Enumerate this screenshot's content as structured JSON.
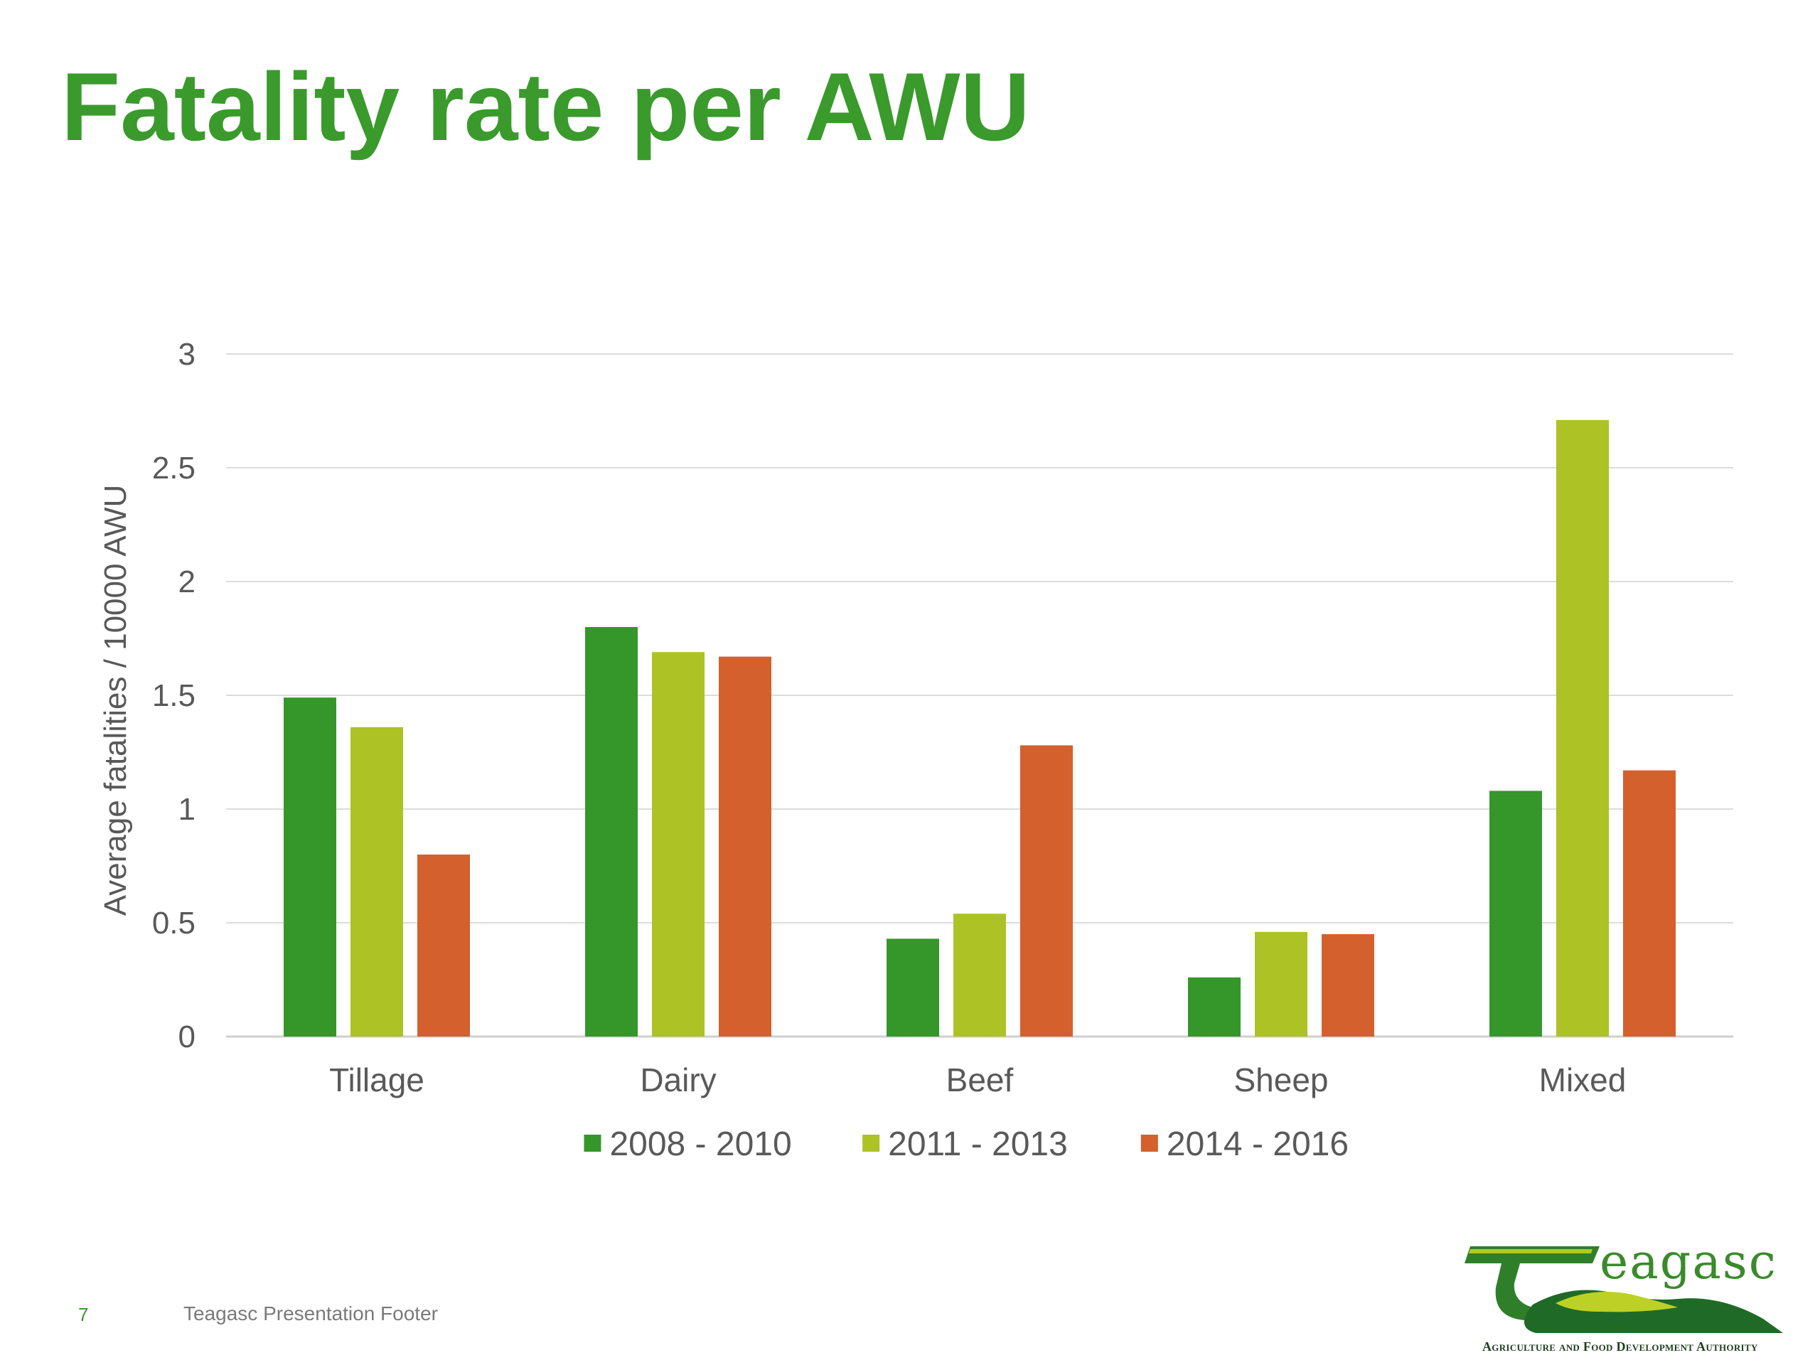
{
  "slide": {
    "title": "Fatality rate per AWU",
    "page_number": "7",
    "footer": "Teagasc Presentation Footer"
  },
  "logo": {
    "wordmark": "eagasc",
    "tagline": "Agriculture and Food Development Authority",
    "colors": {
      "green": "#3a8a2c",
      "lime": "#b4c81e",
      "dark": "#1f5a24"
    }
  },
  "chart_data": {
    "type": "bar",
    "title": "",
    "xlabel": "",
    "ylabel": "Average fatalities / 10000 AWU",
    "ylim": [
      0,
      3
    ],
    "yticks": [
      0,
      0.5,
      1,
      1.5,
      2,
      2.5,
      3
    ],
    "ytick_labels": [
      "0",
      "0.5",
      "1",
      "1.5",
      "2",
      "2.5",
      "3"
    ],
    "grid": true,
    "legend_position": "bottom",
    "categories": [
      "Tillage",
      "Dairy",
      "Beef",
      "Sheep",
      "Mixed"
    ],
    "series": [
      {
        "name": "2008 - 2010",
        "color": "#35962a",
        "values": [
          1.49,
          1.8,
          0.43,
          0.26,
          1.08
        ]
      },
      {
        "name": "2011 - 2013",
        "color": "#adc224",
        "values": [
          1.36,
          1.69,
          0.54,
          0.46,
          2.71
        ]
      },
      {
        "name": "2014 - 2016",
        "color": "#d4602d",
        "values": [
          0.8,
          1.67,
          1.28,
          0.45,
          1.17
        ]
      }
    ]
  }
}
